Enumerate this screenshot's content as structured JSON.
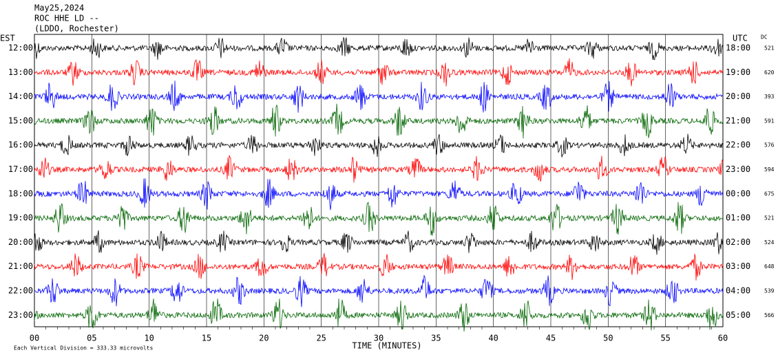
{
  "header": {
    "date": "May25,2024",
    "station": "ROC HHE LD --",
    "location": "(LDDO, Rochester)"
  },
  "left_axis": {
    "title": "EST",
    "labels": [
      "12:00",
      "13:00",
      "14:00",
      "15:00",
      "16:00",
      "17:00",
      "18:00",
      "19:00",
      "20:00",
      "21:00",
      "22:00",
      "23:00"
    ]
  },
  "right_axis": {
    "title": "UTC",
    "labels": [
      "18:00",
      "19:00",
      "20:00",
      "21:00",
      "22:00",
      "23:00",
      "00:00",
      "01:00",
      "02:00",
      "03:00",
      "04:00",
      "05:00"
    ]
  },
  "dc": {
    "title": "DC",
    "values": [
      "521",
      "620",
      "393",
      "591",
      "576",
      "594",
      "675",
      "521",
      "524",
      "648",
      "539",
      "566"
    ]
  },
  "x_axis": {
    "title": "TIME (MINUTES)",
    "labels": [
      "00",
      "05",
      "10",
      "15",
      "20",
      "25",
      "30",
      "35",
      "40",
      "45",
      "50",
      "55",
      "60"
    ]
  },
  "footer": "Each Vertical Division =  333.33 microvolts"
}
